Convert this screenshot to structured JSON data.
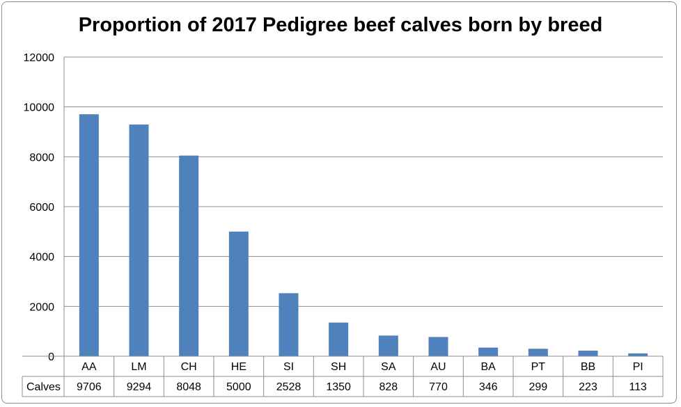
{
  "chart_data": {
    "type": "bar",
    "title": "Proportion of 2017 Pedigree beef calves born by breed",
    "categories": [
      "AA",
      "LM",
      "CH",
      "HE",
      "SI",
      "SH",
      "SA",
      "AU",
      "BA",
      "PT",
      "BB",
      "PI"
    ],
    "series": [
      {
        "name": "Calves",
        "values": [
          9706,
          9294,
          8048,
          5000,
          2528,
          1350,
          828,
          770,
          346,
          299,
          223,
          113
        ]
      }
    ],
    "yticks": [
      "0",
      "2000",
      "4000",
      "6000",
      "8000",
      "10000",
      "12000"
    ],
    "ylim": [
      0,
      12000
    ],
    "grid": true,
    "data_table": true,
    "bar_color": "#4f81bd"
  }
}
